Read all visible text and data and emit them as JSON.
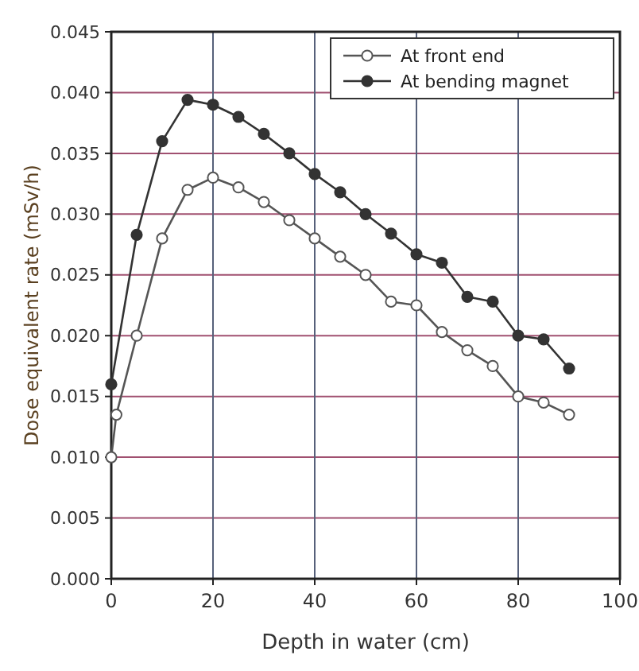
{
  "chart_data": {
    "type": "line",
    "xlabel": "Depth in water (cm)",
    "ylabel": "Dose equivalent rate (mSv/h)",
    "xlim": [
      0,
      100
    ],
    "xticks": [
      0,
      20,
      40,
      60,
      80,
      100
    ],
    "ylim": [
      0,
      0.045
    ],
    "yticks": [
      {
        "value": 0,
        "label": "0.000"
      },
      {
        "value": 0.005,
        "label": "0.005"
      },
      {
        "value": 0.01,
        "label": "0.010"
      },
      {
        "value": 0.015,
        "label": "0.015"
      },
      {
        "value": 0.02,
        "label": "0.020"
      },
      {
        "value": 0.025,
        "label": "0.025"
      },
      {
        "value": 0.03,
        "label": "0.030"
      },
      {
        "value": 0.035,
        "label": "0.035"
      },
      {
        "value": 0.04,
        "label": "0.040"
      },
      {
        "value": 0.045,
        "label": "0.045"
      }
    ],
    "grid": true,
    "legend": "top right",
    "marker": "circle",
    "line_style": "solid",
    "series": [
      {
        "name": "At front end",
        "color": "#555555",
        "x": [
          0,
          1,
          5,
          10,
          15,
          20,
          25,
          30,
          35,
          40,
          45,
          50,
          55,
          60,
          65,
          70,
          75,
          80,
          85,
          90
        ],
        "values": [
          0.01,
          0.0135,
          0.02,
          0.028,
          0.032,
          0.033,
          0.0322,
          0.031,
          0.0295,
          0.028,
          0.0265,
          0.025,
          0.0228,
          0.0225,
          0.0203,
          0.0188,
          0.0175,
          0.015,
          0.0145,
          0.0135
        ]
      },
      {
        "name": "At bending magnet",
        "color": "#333333",
        "x": [
          0,
          5,
          10,
          15,
          20,
          25,
          30,
          35,
          40,
          45,
          50,
          55,
          60,
          65,
          70,
          75,
          80,
          85,
          90
        ],
        "values": [
          0.016,
          0.0283,
          0.036,
          0.0394,
          0.039,
          0.038,
          0.0366,
          0.035,
          0.0333,
          0.0318,
          0.03,
          0.0284,
          0.0267,
          0.026,
          0.0232,
          0.0228,
          0.02,
          0.0197,
          0.0173
        ]
      }
    ]
  }
}
